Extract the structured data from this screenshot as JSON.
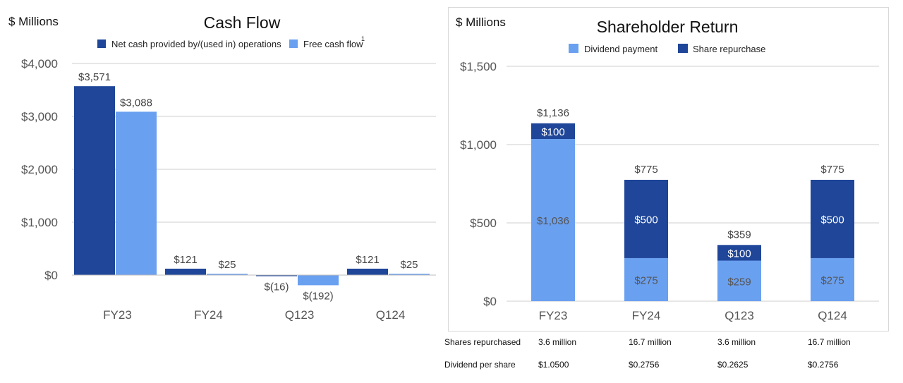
{
  "colors": {
    "dark": "#1f4699",
    "light": "#6aa0f0",
    "grid": "#cfcfcf",
    "axis": "#bdbdbd"
  },
  "chart_data": [
    {
      "type": "bar",
      "title": "Cash Flow",
      "unit_label": "$ Millions",
      "categories": [
        "FY23",
        "FY24",
        "Q123",
        "Q124"
      ],
      "series": [
        {
          "name": "Net cash provided by/(used in) operations",
          "values": [
            3571,
            121,
            -16,
            121
          ],
          "labels": [
            "$3,571",
            "$121",
            "$(16)",
            "$121"
          ]
        },
        {
          "name": "Free cash flow",
          "name_superscript": "1",
          "values": [
            3088,
            25,
            -192,
            25
          ],
          "labels": [
            "$3,088",
            "$25",
            "$(192)",
            "$25"
          ]
        }
      ],
      "ylim": [
        0,
        4000
      ],
      "yticks": [
        0,
        1000,
        2000,
        3000,
        4000
      ],
      "ytick_labels": [
        "$0",
        "$1,000",
        "$2,000",
        "$3,000",
        "$4,000"
      ],
      "grid": true,
      "legend_position": "top"
    },
    {
      "type": "bar",
      "stacked": true,
      "title": "Shareholder Return",
      "unit_label": "$ Millions",
      "categories": [
        "FY23",
        "FY24",
        "Q123",
        "Q124"
      ],
      "series": [
        {
          "name": "Dividend payment",
          "values": [
            1036,
            275,
            259,
            275
          ],
          "labels": [
            "$1,036",
            "$275",
            "$259",
            "$275"
          ]
        },
        {
          "name": "Share repurchase",
          "values": [
            100,
            500,
            100,
            500
          ],
          "labels": [
            "$100",
            "$500",
            "$100",
            "$500"
          ]
        }
      ],
      "totals": [
        1136,
        775,
        359,
        775
      ],
      "total_labels": [
        "$1,136",
        "$775",
        "$359",
        "$775"
      ],
      "ylim": [
        0,
        1500
      ],
      "yticks": [
        0,
        500,
        1000,
        1500
      ],
      "ytick_labels": [
        "$0",
        "$500",
        "$1,000",
        "$1,500"
      ],
      "grid": true,
      "legend_position": "top"
    }
  ],
  "table": {
    "rows": [
      {
        "label": "Shares repurchased",
        "values": [
          "3.6 million",
          "16.7 million",
          "3.6 million",
          "16.7 million"
        ]
      },
      {
        "label": "Dividend per share",
        "values": [
          "$1.0500",
          "$0.2756",
          "$0.2625",
          "$0.2756"
        ]
      }
    ]
  }
}
